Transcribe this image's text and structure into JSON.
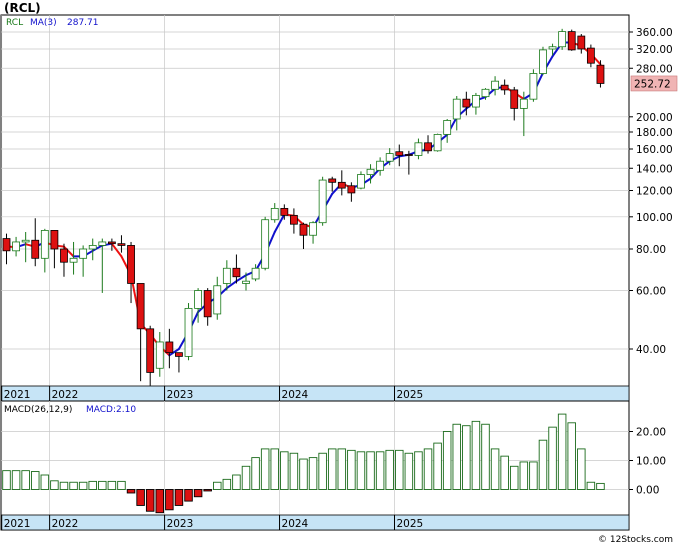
{
  "ticker": "(RCL)",
  "watermark": "© 12Stocks.com",
  "colors": {
    "up_candle": "#1a7a1a",
    "down_candle": "#dd1111",
    "ma_rising": "#1111cc",
    "ma_falling": "#ee1111",
    "legend_ticker": "#1a7a1a",
    "legend_value": "#1111cc",
    "grid": "#c8c8c8",
    "axis_band": "#c6e4f6",
    "last_price_bg": "#f0b4b4",
    "macd_pos_border": "#1a6a1a",
    "macd_neg_fill": "#dd1111"
  },
  "chart_data": [
    {
      "type": "candlestick",
      "title": "(RCL)",
      "legend": {
        "ticker": "RCL",
        "ma_label": "MA(3)",
        "ma_value": "287.71"
      },
      "scale": "log",
      "ylim": [
        30,
        390
      ],
      "y_ticks": [
        40,
        60,
        80,
        100,
        120,
        140,
        160,
        180,
        200,
        280,
        320,
        360
      ],
      "y_tick_labels": [
        "40.00",
        "60.00",
        "80.00",
        "100.00",
        "120.00",
        "140.00",
        "160.00",
        "180.00",
        "200.00",
        "280.00",
        "320.00",
        "360.00"
      ],
      "last_price_label": "252.72",
      "x_labels": [
        "2021",
        "2022",
        "2023",
        "2024",
        "2025"
      ],
      "x_label_month_index": [
        0,
        5,
        17,
        29,
        41
      ],
      "grid": true,
      "series": [
        {
          "name": "RCL",
          "ohlc": [
            [
              86,
              89,
              72,
              79
            ],
            [
              79,
              87,
              76,
              84
            ],
            [
              84,
              90,
              73,
              85
            ],
            [
              85,
              99,
              71,
              75
            ],
            [
              75,
              92,
              68,
              91
            ],
            [
              91,
              91,
              70,
              80
            ],
            [
              80,
              83,
              66,
              73
            ],
            [
              73,
              84,
              67,
              75
            ],
            [
              75,
              82,
              66,
              80
            ],
            [
              80,
              86,
              74,
              82
            ],
            [
              82,
              86,
              59,
              84
            ],
            [
              84,
              86,
              79,
              83
            ],
            [
              83,
              88,
              78,
              82
            ],
            [
              82,
              84,
              55,
              63
            ],
            [
              63,
              63,
              32,
              46
            ],
            [
              46,
              47,
              31,
              34
            ],
            [
              35,
              45,
              33,
              42
            ],
            [
              42,
              46,
              35,
              39
            ],
            [
              39,
              39,
              34,
              38
            ],
            [
              38,
              55,
              37,
              53
            ],
            [
              53,
              61,
              48,
              60
            ],
            [
              60,
              61,
              47,
              50
            ],
            [
              51,
              66,
              49,
              62
            ],
            [
              63,
              74,
              60,
              70
            ],
            [
              70,
              77,
              63,
              66
            ],
            [
              63,
              68,
              60,
              64
            ],
            [
              65,
              72,
              64,
              70
            ],
            [
              70,
              100,
              69,
              98
            ],
            [
              98,
              110,
              96,
              106
            ],
            [
              106,
              109,
              98,
              101
            ],
            [
              101,
              106,
              89,
              95
            ],
            [
              95,
              96,
              80,
              88
            ],
            [
              88,
              97,
              83,
              96
            ],
            [
              96,
              132,
              94,
              129
            ],
            [
              130,
              132,
              119,
              127
            ],
            [
              127,
              138,
              116,
              122
            ],
            [
              124,
              127,
              111,
              118
            ],
            [
              122,
              137,
              121,
              134
            ],
            [
              134,
              144,
              126,
              139
            ],
            [
              138,
              151,
              133,
              147
            ],
            [
              147,
              161,
              143,
              155
            ],
            [
              157,
              165,
              142,
              153
            ],
            [
              154,
              158,
              134,
              153
            ],
            [
              153,
              172,
              149,
              167
            ],
            [
              167,
              176,
              155,
              158
            ],
            [
              158,
              178,
              157,
              177
            ],
            [
              177,
              197,
              167,
              195
            ],
            [
              197,
              231,
              182,
              226
            ],
            [
              226,
              238,
              202,
              214
            ],
            [
              214,
              236,
              203,
              232
            ],
            [
              230,
              244,
              225,
              242
            ],
            [
              242,
              265,
              232,
              256
            ],
            [
              249,
              259,
              233,
              241
            ],
            [
              241,
              246,
              195,
              212
            ],
            [
              212,
              238,
              175,
              226
            ],
            [
              226,
              278,
              222,
              270
            ],
            [
              270,
              325,
              267,
              318
            ],
            [
              320,
              332,
              306,
              325
            ],
            [
              325,
              368,
              318,
              361
            ],
            [
              361,
              366,
              316,
              318
            ],
            [
              350,
              355,
              310,
              320
            ],
            [
              322,
              330,
              282,
              290
            ],
            [
              286,
              296,
              245,
              252
            ]
          ],
          "ma3": [
            81.5,
            81.0,
            82.7,
            81.3,
            83.7,
            82.0,
            81.3,
            76.0,
            76.0,
            79.0,
            82.0,
            83.0,
            76.0,
            66.7,
            47.7,
            44.3,
            40.7,
            38.3,
            40.0,
            45.0,
            51.7,
            55.0,
            57.3,
            61.0,
            64.0,
            66.7,
            68.7,
            77.3,
            90.0,
            101.7,
            100.7,
            94.7,
            93.0,
            104.3,
            117.3,
            126.0,
            122.3,
            124.7,
            130.3,
            140.0,
            147.0,
            152.0,
            153.7,
            157.7,
            159.3,
            167.3,
            176.7,
            199.3,
            211.7,
            224.0,
            229.3,
            243.3,
            246.3,
            236.3,
            226.3,
            236.0,
            271.3,
            304.3,
            334.7,
            334.7,
            327.0,
            309.3,
            287.71
          ]
        }
      ]
    },
    {
      "type": "bar",
      "title": "",
      "legend": {
        "label": "MACD(26,12,9)",
        "value_label": "MACD:2.10"
      },
      "ylim": [
        -8.5,
        28
      ],
      "y_ticks": [
        0,
        10,
        20
      ],
      "y_tick_labels": [
        "0.00",
        "10.00",
        "20.00"
      ],
      "x_labels": [
        "2021",
        "2022",
        "2023",
        "2024",
        "2025"
      ],
      "grid": true,
      "series": [
        {
          "name": "MACD(26,12,9)",
          "values": [
            6.5,
            6.5,
            6.5,
            6.2,
            5.0,
            3.0,
            2.5,
            2.5,
            2.5,
            2.8,
            2.8,
            2.8,
            2.8,
            -1.2,
            -5.5,
            -7.5,
            -8.0,
            -7.0,
            -5.5,
            -4.0,
            -2.5,
            -0.5,
            2.5,
            3.5,
            5.0,
            8.0,
            11.0,
            14.0,
            14.0,
            13.0,
            12.5,
            10.5,
            11.0,
            12.5,
            14.0,
            14.0,
            13.5,
            13.0,
            13.0,
            13.0,
            13.5,
            13.5,
            12.5,
            13.0,
            14.0,
            16.0,
            20.0,
            22.5,
            22.0,
            23.5,
            22.5,
            14.0,
            11.5,
            8.0,
            9.5,
            9.5,
            17.0,
            21.5,
            26.0,
            23.0,
            14.0,
            2.5,
            2.1
          ]
        }
      ]
    }
  ]
}
